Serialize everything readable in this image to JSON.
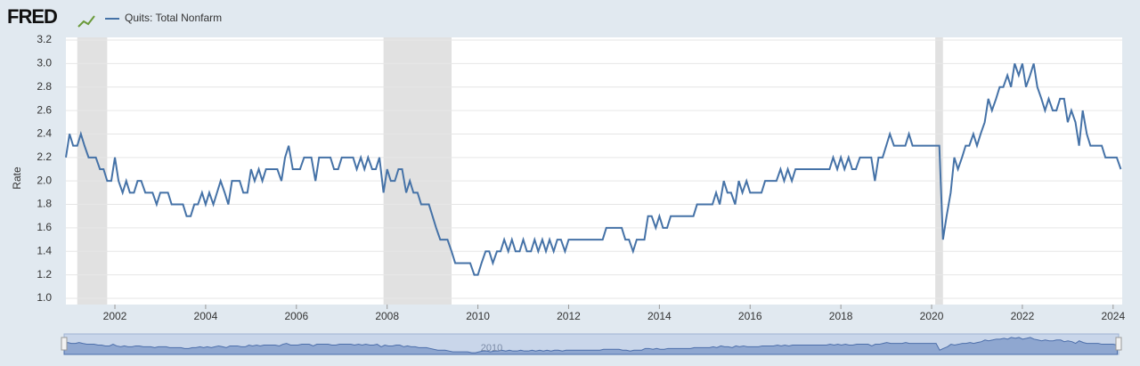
{
  "chart_data": {
    "type": "line",
    "logo": "FRED",
    "ylabel": "Rate",
    "navigator_label": "2010",
    "x": [
      2000.92,
      2001.0,
      2001.08,
      2001.17,
      2001.25,
      2001.33,
      2001.42,
      2001.5,
      2001.58,
      2001.67,
      2001.75,
      2001.83,
      2001.92,
      2002.0,
      2002.08,
      2002.17,
      2002.25,
      2002.33,
      2002.42,
      2002.5,
      2002.58,
      2002.67,
      2002.75,
      2002.83,
      2002.92,
      2003.0,
      2003.08,
      2003.17,
      2003.25,
      2003.33,
      2003.42,
      2003.5,
      2003.58,
      2003.67,
      2003.75,
      2003.83,
      2003.92,
      2004.0,
      2004.08,
      2004.17,
      2004.25,
      2004.33,
      2004.42,
      2004.5,
      2004.58,
      2004.67,
      2004.75,
      2004.83,
      2004.92,
      2005.0,
      2005.08,
      2005.17,
      2005.25,
      2005.33,
      2005.42,
      2005.5,
      2005.58,
      2005.67,
      2005.75,
      2005.83,
      2005.92,
      2006.0,
      2006.08,
      2006.17,
      2006.25,
      2006.33,
      2006.42,
      2006.5,
      2006.58,
      2006.67,
      2006.75,
      2006.83,
      2006.92,
      2007.0,
      2007.08,
      2007.17,
      2007.25,
      2007.33,
      2007.42,
      2007.5,
      2007.58,
      2007.67,
      2007.75,
      2007.83,
      2007.92,
      2008.0,
      2008.08,
      2008.17,
      2008.25,
      2008.33,
      2008.42,
      2008.5,
      2008.58,
      2008.67,
      2008.75,
      2008.83,
      2008.92,
      2009.0,
      2009.08,
      2009.17,
      2009.25,
      2009.33,
      2009.42,
      2009.5,
      2009.58,
      2009.67,
      2009.75,
      2009.83,
      2009.92,
      2010.0,
      2010.08,
      2010.17,
      2010.25,
      2010.33,
      2010.42,
      2010.5,
      2010.58,
      2010.67,
      2010.75,
      2010.83,
      2010.92,
      2011.0,
      2011.08,
      2011.17,
      2011.25,
      2011.33,
      2011.42,
      2011.5,
      2011.58,
      2011.67,
      2011.75,
      2011.83,
      2011.92,
      2012.0,
      2012.08,
      2012.17,
      2012.25,
      2012.33,
      2012.42,
      2012.5,
      2012.58,
      2012.67,
      2012.75,
      2012.83,
      2012.92,
      2013.0,
      2013.08,
      2013.17,
      2013.25,
      2013.33,
      2013.42,
      2013.5,
      2013.58,
      2013.67,
      2013.75,
      2013.83,
      2013.92,
      2014.0,
      2014.08,
      2014.17,
      2014.25,
      2014.33,
      2014.42,
      2014.5,
      2014.58,
      2014.67,
      2014.75,
      2014.83,
      2014.92,
      2015.0,
      2015.08,
      2015.17,
      2015.25,
      2015.33,
      2015.42,
      2015.5,
      2015.58,
      2015.67,
      2015.75,
      2015.83,
      2015.92,
      2016.0,
      2016.08,
      2016.17,
      2016.25,
      2016.33,
      2016.42,
      2016.5,
      2016.58,
      2016.67,
      2016.75,
      2016.83,
      2016.92,
      2017.0,
      2017.08,
      2017.17,
      2017.25,
      2017.33,
      2017.42,
      2017.5,
      2017.58,
      2017.67,
      2017.75,
      2017.83,
      2017.92,
      2018.0,
      2018.08,
      2018.17,
      2018.25,
      2018.33,
      2018.42,
      2018.5,
      2018.58,
      2018.67,
      2018.75,
      2018.83,
      2018.92,
      2019.0,
      2019.08,
      2019.17,
      2019.25,
      2019.33,
      2019.42,
      2019.5,
      2019.58,
      2019.67,
      2019.75,
      2019.83,
      2019.92,
      2020.0,
      2020.08,
      2020.17,
      2020.25,
      2020.33,
      2020.42,
      2020.5,
      2020.58,
      2020.67,
      2020.75,
      2020.83,
      2020.92,
      2021.0,
      2021.08,
      2021.17,
      2021.25,
      2021.33,
      2021.42,
      2021.5,
      2021.58,
      2021.67,
      2021.75,
      2021.83,
      2021.92,
      2022.0,
      2022.08,
      2022.17,
      2022.25,
      2022.33,
      2022.42,
      2022.5,
      2022.58,
      2022.67,
      2022.75,
      2022.83,
      2022.92,
      2023.0,
      2023.08,
      2023.17,
      2023.25,
      2023.33,
      2023.42,
      2023.5,
      2023.58,
      2023.67,
      2023.75,
      2023.83,
      2023.92,
      2024.0,
      2024.08,
      2024.17
    ],
    "series": [
      {
        "name": "Quits: Total Nonfarm",
        "color": "#4572a7",
        "values": [
          2.2,
          2.4,
          2.3,
          2.3,
          2.4,
          2.3,
          2.2,
          2.2,
          2.2,
          2.1,
          2.1,
          2.0,
          2.0,
          2.2,
          2.0,
          1.9,
          2.0,
          1.9,
          1.9,
          2.0,
          2.0,
          1.9,
          1.9,
          1.9,
          1.8,
          1.9,
          1.9,
          1.9,
          1.8,
          1.8,
          1.8,
          1.8,
          1.7,
          1.7,
          1.8,
          1.8,
          1.9,
          1.8,
          1.9,
          1.8,
          1.9,
          2.0,
          1.9,
          1.8,
          2.0,
          2.0,
          2.0,
          1.9,
          1.9,
          2.1,
          2.0,
          2.1,
          2.0,
          2.1,
          2.1,
          2.1,
          2.1,
          2.0,
          2.2,
          2.3,
          2.1,
          2.1,
          2.1,
          2.2,
          2.2,
          2.2,
          2.0,
          2.2,
          2.2,
          2.2,
          2.2,
          2.1,
          2.1,
          2.2,
          2.2,
          2.2,
          2.2,
          2.1,
          2.2,
          2.1,
          2.2,
          2.1,
          2.1,
          2.2,
          1.9,
          2.1,
          2.0,
          2.0,
          2.1,
          2.1,
          1.9,
          2.0,
          1.9,
          1.9,
          1.8,
          1.8,
          1.8,
          1.7,
          1.6,
          1.5,
          1.5,
          1.5,
          1.4,
          1.3,
          1.3,
          1.3,
          1.3,
          1.3,
          1.2,
          1.2,
          1.3,
          1.4,
          1.4,
          1.3,
          1.4,
          1.4,
          1.5,
          1.4,
          1.5,
          1.4,
          1.4,
          1.5,
          1.4,
          1.4,
          1.5,
          1.4,
          1.5,
          1.4,
          1.5,
          1.4,
          1.5,
          1.5,
          1.4,
          1.5,
          1.5,
          1.5,
          1.5,
          1.5,
          1.5,
          1.5,
          1.5,
          1.5,
          1.5,
          1.6,
          1.6,
          1.6,
          1.6,
          1.6,
          1.5,
          1.5,
          1.4,
          1.5,
          1.5,
          1.5,
          1.7,
          1.7,
          1.6,
          1.7,
          1.6,
          1.6,
          1.7,
          1.7,
          1.7,
          1.7,
          1.7,
          1.7,
          1.7,
          1.8,
          1.8,
          1.8,
          1.8,
          1.8,
          1.9,
          1.8,
          2.0,
          1.9,
          1.9,
          1.8,
          2.0,
          1.9,
          2.0,
          1.9,
          1.9,
          1.9,
          1.9,
          2.0,
          2.0,
          2.0,
          2.0,
          2.1,
          2.0,
          2.1,
          2.0,
          2.1,
          2.1,
          2.1,
          2.1,
          2.1,
          2.1,
          2.1,
          2.1,
          2.1,
          2.1,
          2.2,
          2.1,
          2.2,
          2.1,
          2.2,
          2.1,
          2.1,
          2.2,
          2.2,
          2.2,
          2.2,
          2.0,
          2.2,
          2.2,
          2.3,
          2.4,
          2.3,
          2.3,
          2.3,
          2.3,
          2.4,
          2.3,
          2.3,
          2.3,
          2.3,
          2.3,
          2.3,
          2.3,
          2.3,
          1.5,
          1.7,
          1.9,
          2.2,
          2.1,
          2.2,
          2.3,
          2.3,
          2.4,
          2.3,
          2.4,
          2.5,
          2.7,
          2.6,
          2.7,
          2.8,
          2.8,
          2.9,
          2.8,
          3.0,
          2.9,
          3.0,
          2.8,
          2.9,
          3.0,
          2.8,
          2.7,
          2.6,
          2.7,
          2.6,
          2.6,
          2.7,
          2.7,
          2.5,
          2.6,
          2.5,
          2.3,
          2.6,
          2.4,
          2.3,
          2.3,
          2.3,
          2.3,
          2.2,
          2.2,
          2.2,
          2.2,
          2.1
        ]
      }
    ],
    "recessions": [
      [
        2001.17,
        2001.83
      ],
      [
        2007.92,
        2009.42
      ],
      [
        2020.08,
        2020.25
      ]
    ],
    "xlim": [
      2000.92,
      2024.2
    ],
    "xticks": [
      2002,
      2004,
      2006,
      2008,
      2010,
      2012,
      2014,
      2016,
      2018,
      2020,
      2022,
      2024
    ],
    "ylim": [
      1.0,
      3.2
    ],
    "yticks": [
      {
        "value": 1,
        "label": "1.0"
      },
      1.2,
      1.4,
      1.6,
      1.8,
      {
        "value": 2,
        "label": "2.0"
      },
      2.2,
      2.4,
      2.6,
      2.8,
      {
        "value": 3,
        "label": "3.0"
      },
      3.2
    ],
    "grid": true
  }
}
